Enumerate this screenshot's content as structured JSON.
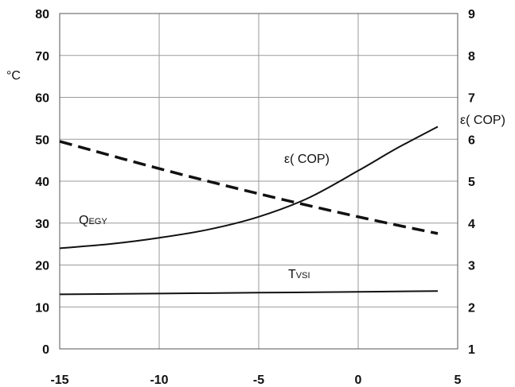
{
  "chart_data": {
    "type": "line",
    "x_ticks": [
      "-15",
      "-10",
      "-5",
      "0",
      "5"
    ],
    "y_left_ticks": [
      "0",
      "10",
      "20",
      "30",
      "40",
      "50",
      "60",
      "70",
      "80"
    ],
    "y_right_ticks": [
      "1",
      "2",
      "3",
      "4",
      "5",
      "6",
      "7",
      "8",
      "9"
    ],
    "xlim": [
      -15,
      5
    ],
    "ylim_left": [
      0,
      80
    ],
    "ylim_right": [
      1,
      9
    ],
    "ylabel_left": "°C",
    "ylabel_right": "ε( COP)",
    "grid": true,
    "series": [
      {
        "name": "ε( COP)",
        "axis": "right",
        "style": "solid",
        "points": [
          [
            -15,
            3.4
          ],
          [
            -12.5,
            3.5
          ],
          [
            -10,
            3.65
          ],
          [
            -7.5,
            3.85
          ],
          [
            -5,
            4.15
          ],
          [
            -2.5,
            4.6
          ],
          [
            0,
            5.25
          ],
          [
            2,
            5.8
          ],
          [
            4,
            6.3
          ]
        ]
      },
      {
        "name": "Q",
        "name_sub": "EGY",
        "axis": "left",
        "style": "dashed",
        "points": [
          [
            -15,
            49.5
          ],
          [
            -10,
            43
          ],
          [
            -5,
            37
          ],
          [
            0,
            31.5
          ],
          [
            4,
            27.5
          ]
        ]
      },
      {
        "name": "T",
        "name_sub": "VSI",
        "axis": "left",
        "style": "solid",
        "points": [
          [
            -15,
            13
          ],
          [
            -10,
            13.2
          ],
          [
            -5,
            13.4
          ],
          [
            0,
            13.6
          ],
          [
            4,
            13.8
          ]
        ]
      }
    ]
  }
}
